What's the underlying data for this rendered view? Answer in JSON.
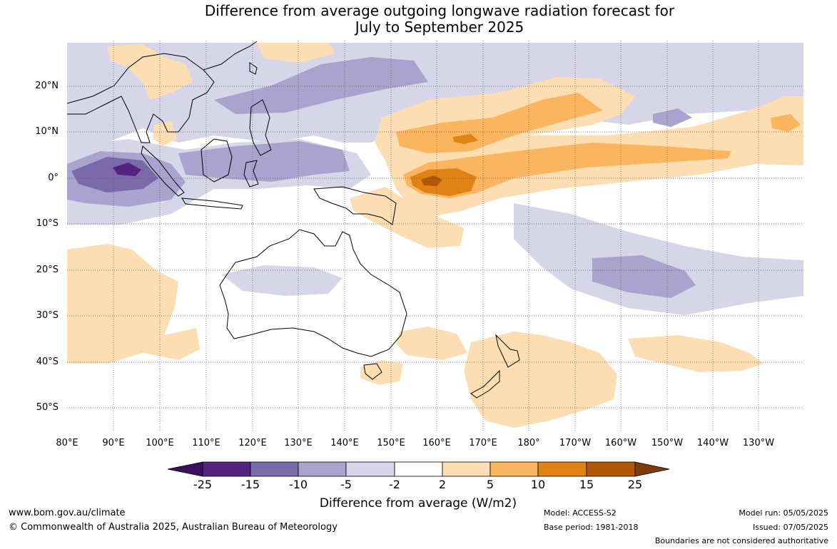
{
  "title_line1": "Difference from average outgoing longwave radiation forecast for",
  "title_line2": "July to September 2025",
  "lat_labels": [
    "20°N",
    "10°N",
    "0°",
    "10°S",
    "20°S",
    "30°S",
    "40°S",
    "50°S"
  ],
  "lon_labels": [
    "80°E",
    "90°E",
    "100°E",
    "110°E",
    "120°E",
    "130°E",
    "140°E",
    "150°E",
    "160°E",
    "170°E",
    "180°",
    "170°W",
    "160°W",
    "150°W",
    "140°W",
    "130°W"
  ],
  "colorbar": {
    "title": "Difference from average (W/m2)",
    "ticks": [
      "-25",
      "-15",
      "-10",
      "-5",
      "-2",
      "2",
      "5",
      "10",
      "15",
      "25"
    ],
    "colors": [
      "#3a0f5e",
      "#54237f",
      "#7a6aa9",
      "#aaa3cd",
      "#d7d6e9",
      "#ffffff",
      "#fddeb2",
      "#fbb55e",
      "#e08214",
      "#b35806",
      "#7f3b08"
    ]
  },
  "footer": {
    "website": "www.bom.gov.au/climate",
    "copyright": "© Commonwealth of Australia 2025, Australian Bureau of Meteorology",
    "model": "Model: ACCESS-S2",
    "base_period": "Base period: 1981-2018",
    "model_run": "Model run: 05/05/2025",
    "issued": "Issued: 07/05/2025",
    "disclaimer": "Boundaries are not considered authoritative"
  }
}
